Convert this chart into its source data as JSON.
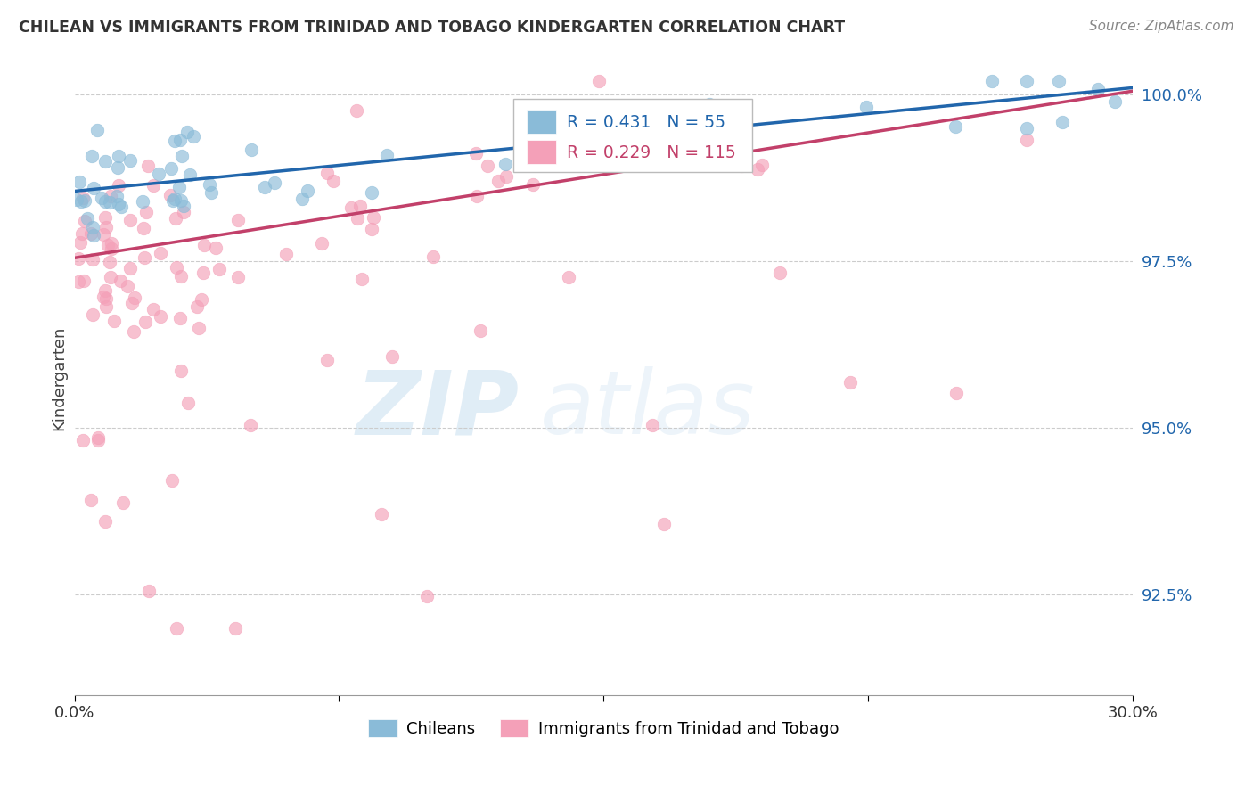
{
  "title": "CHILEAN VS IMMIGRANTS FROM TRINIDAD AND TOBAGO KINDERGARTEN CORRELATION CHART",
  "source": "Source: ZipAtlas.com",
  "ylabel": "Kindergarten",
  "ytick_labels": [
    "92.5%",
    "95.0%",
    "97.5%",
    "100.0%"
  ],
  "ytick_values": [
    0.925,
    0.95,
    0.975,
    1.0
  ],
  "xlim": [
    0.0,
    0.3
  ],
  "ylim": [
    0.91,
    1.005
  ],
  "legend_label_blue": "Chileans",
  "legend_label_pink": "Immigrants from Trinidad and Tobago",
  "blue_color": "#8abbd8",
  "pink_color": "#f4a0b8",
  "blue_line_color": "#2166ac",
  "pink_line_color": "#c2406a",
  "watermark_zip": "ZIP",
  "watermark_atlas": "atlas",
  "blue_R": 0.431,
  "blue_N": 55,
  "pink_R": 0.229,
  "pink_N": 115,
  "blue_line_x0": 0.0,
  "blue_line_y0": 0.9855,
  "blue_line_x1": 0.3,
  "blue_line_y1": 1.001,
  "pink_line_x0": 0.0,
  "pink_line_y0": 0.9755,
  "pink_line_x1": 0.3,
  "pink_line_y1": 1.0005
}
